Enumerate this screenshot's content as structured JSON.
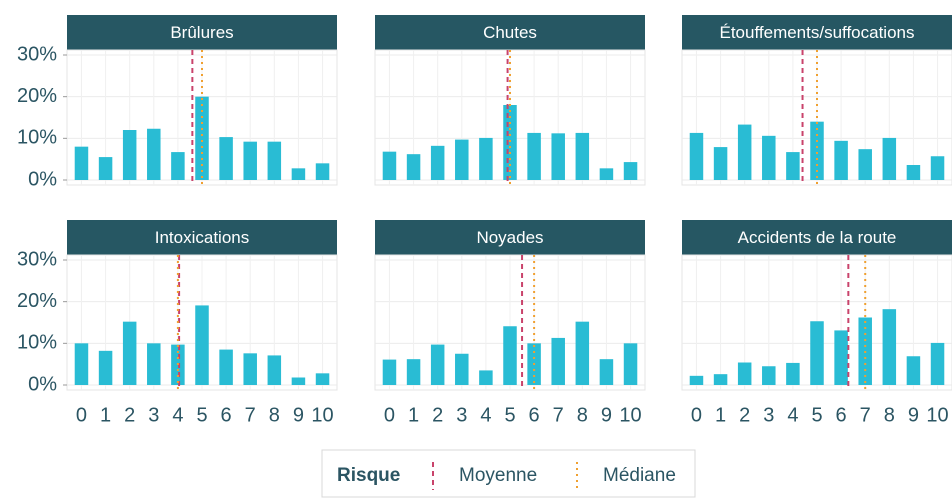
{
  "chart_data": [
    {
      "type": "bar",
      "title": "Brûlures",
      "categories": [
        "0",
        "1",
        "2",
        "3",
        "4",
        "5",
        "6",
        "7",
        "8",
        "9",
        "10"
      ],
      "values": [
        8,
        5.5,
        12,
        12.3,
        6.7,
        20,
        10.3,
        9.2,
        9.2,
        2.8,
        4
      ],
      "mean": 4.6,
      "median": 5,
      "color": "#29bcd4",
      "ylim": [
        -1.2,
        31.2
      ],
      "yticks": [
        {
          "value": 0,
          "label": "0%"
        },
        {
          "value": 10,
          "label": "10%"
        },
        {
          "value": 20,
          "label": "20%"
        },
        {
          "value": 30,
          "label": "30%"
        }
      ],
      "grid": true
    },
    {
      "type": "bar",
      "title": "Chutes",
      "categories": [
        "0",
        "1",
        "2",
        "3",
        "4",
        "5",
        "6",
        "7",
        "8",
        "9",
        "10"
      ],
      "values": [
        6.8,
        6.2,
        8.2,
        9.7,
        10.1,
        18,
        11.3,
        11.2,
        11.3,
        2.8,
        4.3
      ],
      "mean": 4.9,
      "median": 5,
      "color": "#29bcd4",
      "ylim": [
        -1.2,
        31.2
      ],
      "yticks": [
        {
          "value": 0,
          "label": "0%"
        },
        {
          "value": 10,
          "label": "10%"
        },
        {
          "value": 20,
          "label": "20%"
        },
        {
          "value": 30,
          "label": "30%"
        }
      ],
      "grid": true
    },
    {
      "type": "bar",
      "title": "Étouffements/suffocations",
      "categories": [
        "0",
        "1",
        "2",
        "3",
        "4",
        "5",
        "6",
        "7",
        "8",
        "9",
        "10"
      ],
      "values": [
        11.3,
        7.9,
        13.3,
        10.6,
        6.7,
        14,
        9.4,
        7.4,
        10.1,
        3.6,
        5.7
      ],
      "mean": 4.4,
      "median": 5,
      "color": "#29bcd4",
      "ylim": [
        -1.2,
        31.2
      ],
      "yticks": [
        {
          "value": 0,
          "label": "0%"
        },
        {
          "value": 10,
          "label": "10%"
        },
        {
          "value": 20,
          "label": "20%"
        },
        {
          "value": 30,
          "label": "30%"
        }
      ],
      "grid": true
    },
    {
      "type": "bar",
      "title": "Intoxications",
      "categories": [
        "0",
        "1",
        "2",
        "3",
        "4",
        "5",
        "6",
        "7",
        "8",
        "9",
        "10"
      ],
      "values": [
        10,
        8.2,
        15.2,
        10,
        9.7,
        19.1,
        8.5,
        7.6,
        7.1,
        1.8,
        2.8
      ],
      "mean": 4.05,
      "median": 4,
      "color": "#29bcd4",
      "ylim": [
        -1.2,
        31.2
      ],
      "yticks": [
        {
          "value": 0,
          "label": "0%"
        },
        {
          "value": 10,
          "label": "10%"
        },
        {
          "value": 20,
          "label": "20%"
        },
        {
          "value": 30,
          "label": "30%"
        }
      ],
      "grid": true
    },
    {
      "type": "bar",
      "title": "Noyades",
      "categories": [
        "0",
        "1",
        "2",
        "3",
        "4",
        "5",
        "6",
        "7",
        "8",
        "9",
        "10"
      ],
      "values": [
        6.1,
        6.2,
        9.7,
        7.5,
        3.5,
        14.1,
        10,
        11.3,
        15.2,
        6.2,
        10
      ],
      "mean": 5.5,
      "median": 6,
      "color": "#29bcd4",
      "ylim": [
        -1.2,
        31.2
      ],
      "yticks": [
        {
          "value": 0,
          "label": "0%"
        },
        {
          "value": 10,
          "label": "10%"
        },
        {
          "value": 20,
          "label": "20%"
        },
        {
          "value": 30,
          "label": "30%"
        }
      ],
      "grid": true
    },
    {
      "type": "bar",
      "title": "Accidents de la route",
      "categories": [
        "0",
        "1",
        "2",
        "3",
        "4",
        "5",
        "6",
        "7",
        "8",
        "9",
        "10"
      ],
      "values": [
        2.2,
        2.6,
        5.4,
        4.5,
        5.3,
        15.3,
        13.1,
        16.2,
        18.2,
        6.9,
        10.1
      ],
      "mean": 6.3,
      "median": 7,
      "color": "#29bcd4",
      "ylim": [
        -1.2,
        31.2
      ],
      "yticks": [
        {
          "value": 0,
          "label": "0%"
        },
        {
          "value": 10,
          "label": "10%"
        },
        {
          "value": 20,
          "label": "20%"
        },
        {
          "value": 30,
          "label": "30%"
        }
      ],
      "grid": true
    }
  ],
  "legend": {
    "title": "Risque",
    "items": [
      {
        "name": "Moyenne",
        "color": "#c9436b",
        "style": "dashed"
      },
      {
        "name": "Médiane",
        "color": "#f0a030",
        "style": "dotted"
      }
    ]
  }
}
